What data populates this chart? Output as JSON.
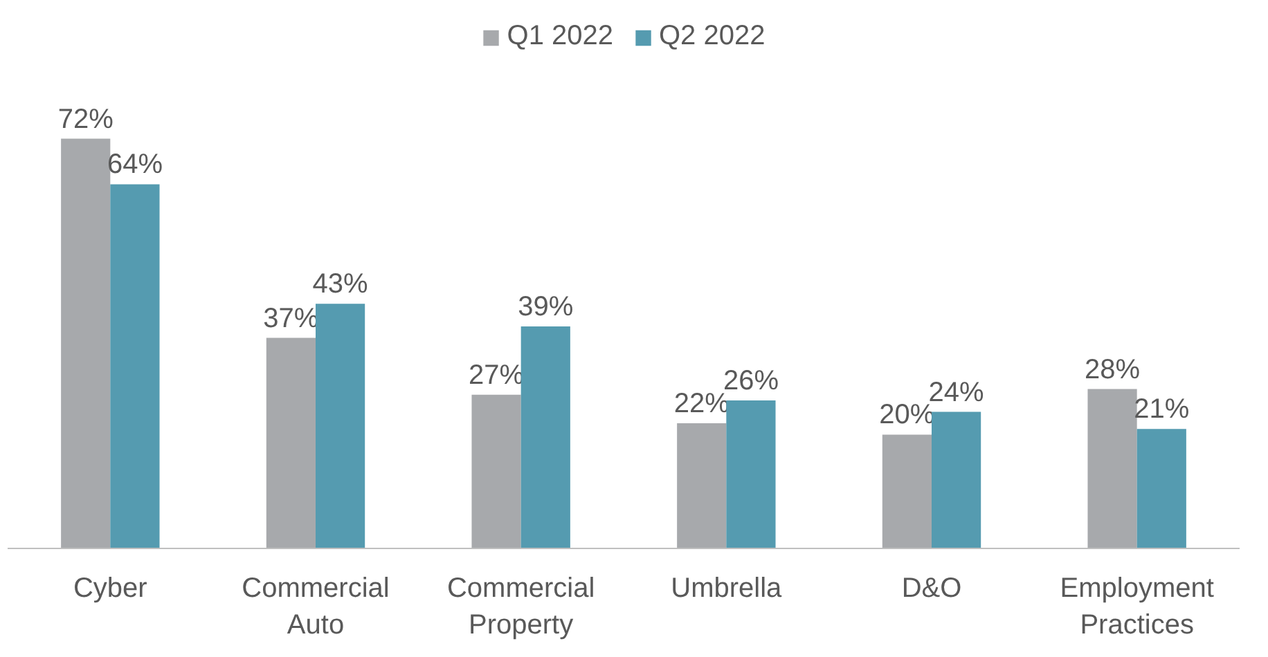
{
  "chart_data": {
    "type": "bar",
    "categories": [
      "Cyber",
      "Commercial Auto",
      "Commercial Property",
      "Umbrella",
      "D&O",
      "Employment Practices"
    ],
    "series": [
      {
        "name": "Q1 2022",
        "color": "#a7a9ac",
        "values": [
          72,
          37,
          27,
          22,
          20,
          28
        ],
        "value_labels": [
          "72%",
          "37%",
          "27%",
          "22%",
          "20%",
          "28%"
        ]
      },
      {
        "name": "Q2 2022",
        "color": "#559bb0",
        "values": [
          64,
          43,
          39,
          26,
          24,
          21
        ],
        "value_labels": [
          "64%",
          "43%",
          "39%",
          "26%",
          "24%",
          "21%"
        ]
      }
    ],
    "legend": "top"
  }
}
